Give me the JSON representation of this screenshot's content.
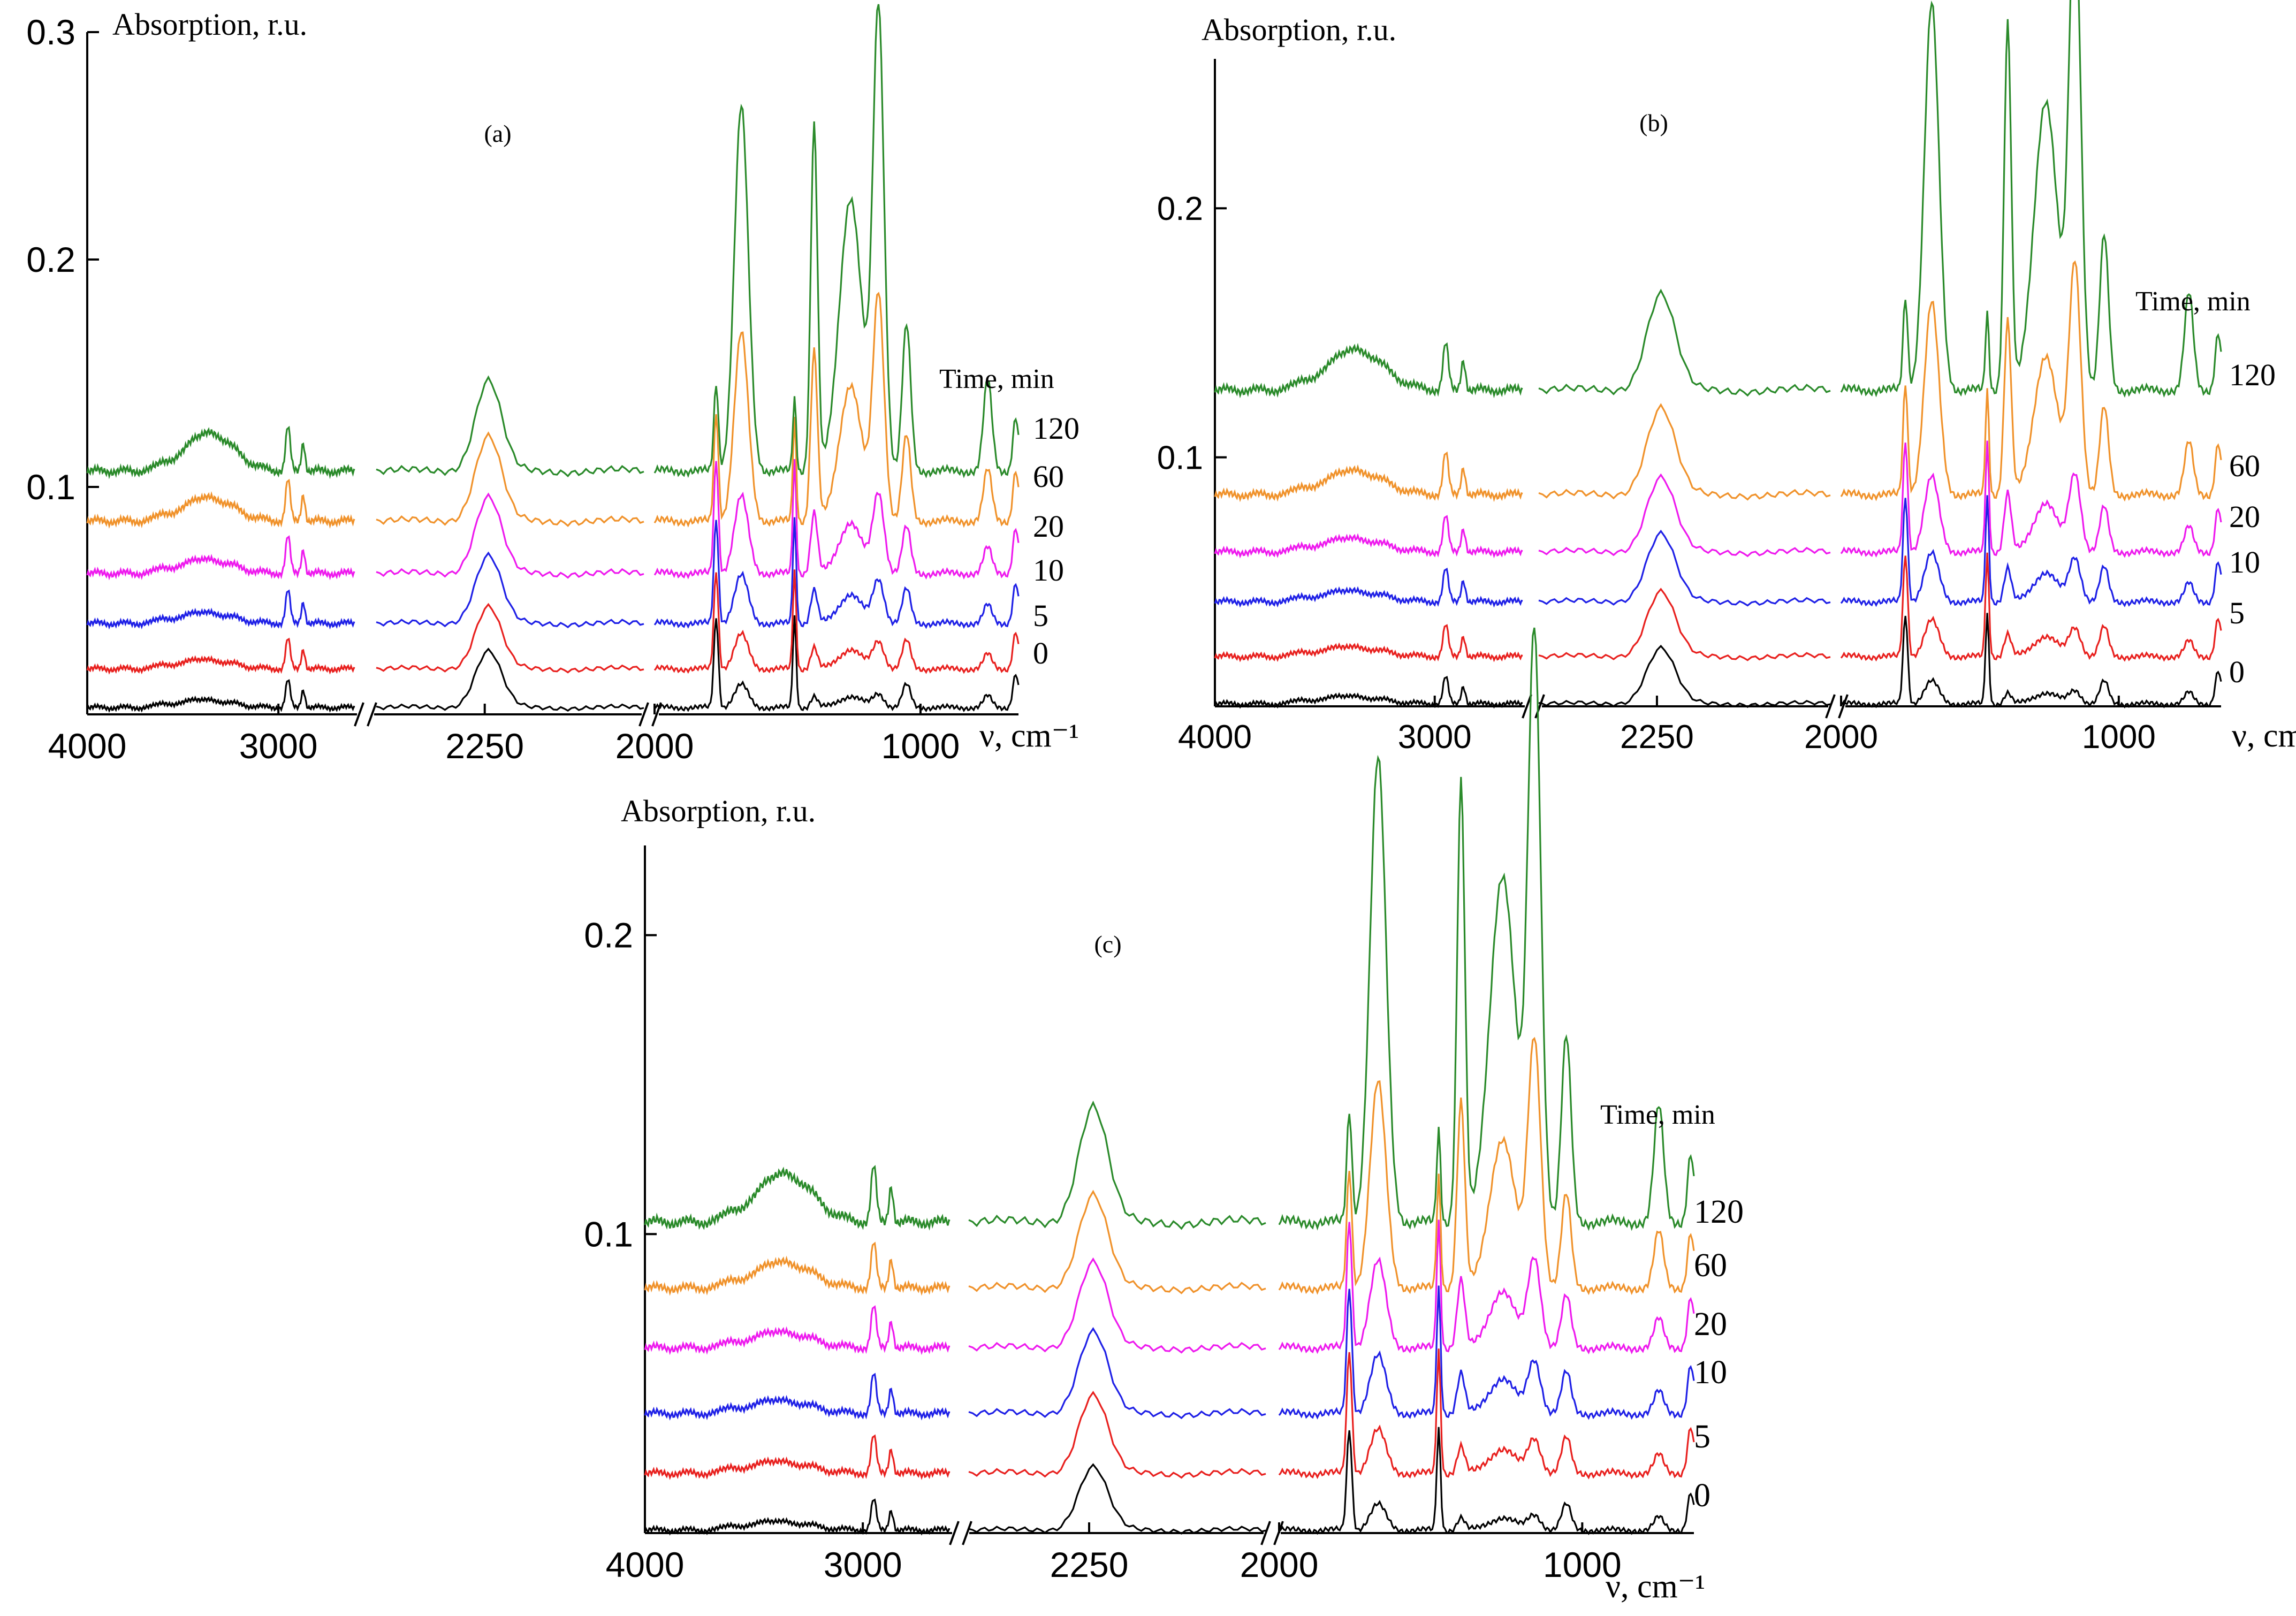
{
  "colors": {
    "0": "#000000",
    "5": "#e8201e",
    "10": "#1f20e6",
    "20": "#ee1aee",
    "60": "#f0922b",
    "120": "#2a8a2a"
  },
  "chart_data": [
    {
      "type": "line",
      "label": "(a)",
      "ylabel": "Absorption, r.u.",
      "xlabel": "ν, cm⁻¹",
      "legend_title": "Time, min",
      "ylim": [
        0,
        0.3
      ],
      "y_ticks": [
        "0.1",
        "0.2",
        "0.3"
      ],
      "y_tick_values": [
        0.1,
        0.2,
        0.3
      ],
      "x_segments": [
        [
          4000,
          2600
        ],
        [
          2400,
          2030
        ],
        [
          1950,
          650
        ]
      ],
      "x_ticks": [
        "4000",
        "3000",
        "2250",
        "2000",
        "1000"
      ],
      "x_tick_values": [
        4000,
        3000,
        2250,
        2000,
        1000
      ],
      "series": [
        {
          "name": "0",
          "offset": 0.003,
          "scale": 1.0
        },
        {
          "name": "5",
          "offset": 0.02,
          "scale": 1.1
        },
        {
          "name": "10",
          "offset": 0.04,
          "scale": 1.2
        },
        {
          "name": "20",
          "offset": 0.062,
          "scale": 1.35
        },
        {
          "name": "60",
          "offset": 0.085,
          "scale": 1.5
        },
        {
          "name": "120",
          "offset": 0.107,
          "scale": 1.6
        }
      ]
    },
    {
      "type": "line",
      "label": "(b)",
      "ylabel": "Absorption, r.u.",
      "xlabel": "ν, cm⁻¹",
      "legend_title": "Time, min",
      "ylim": [
        0,
        0.26
      ],
      "y_ticks": [
        "0.1",
        "0.2"
      ],
      "y_tick_values": [
        0.1,
        0.2
      ],
      "x_segments": [
        [
          4000,
          2600
        ],
        [
          2400,
          2030
        ],
        [
          1950,
          650
        ]
      ],
      "x_ticks": [
        "4000",
        "3000",
        "2250",
        "2000",
        "1000"
      ],
      "x_tick_values": [
        4000,
        3000,
        2250,
        2000,
        1000
      ],
      "series": [
        {
          "name": "0",
          "offset": 0.001,
          "scale": 0.9
        },
        {
          "name": "5",
          "offset": 0.02,
          "scale": 1.05
        },
        {
          "name": "10",
          "offset": 0.042,
          "scale": 1.1
        },
        {
          "name": "20",
          "offset": 0.062,
          "scale": 1.2
        },
        {
          "name": "60",
          "offset": 0.085,
          "scale": 1.4
        },
        {
          "name": "120",
          "offset": 0.127,
          "scale": 1.55
        }
      ]
    },
    {
      "type": "line",
      "label": "(c)",
      "ylabel": "Absorption, r.u.",
      "xlabel": "ν, cm⁻¹",
      "legend_title": "Time, min",
      "ylim": [
        0,
        0.23
      ],
      "y_ticks": [
        "0.1",
        "0.2"
      ],
      "y_tick_values": [
        0.1,
        0.2
      ],
      "x_segments": [
        [
          4000,
          2600
        ],
        [
          2400,
          2030
        ],
        [
          1950,
          650
        ]
      ],
      "x_ticks": [
        "4000",
        "3000",
        "2250",
        "2000",
        "1000"
      ],
      "x_tick_values": [
        4000,
        3000,
        2250,
        2000,
        1000
      ],
      "series": [
        {
          "name": "0",
          "offset": 0.001,
          "scale": 0.85
        },
        {
          "name": "5",
          "offset": 0.02,
          "scale": 1.05
        },
        {
          "name": "10",
          "offset": 0.04,
          "scale": 1.1
        },
        {
          "name": "20",
          "offset": 0.062,
          "scale": 1.15
        },
        {
          "name": "60",
          "offset": 0.082,
          "scale": 1.25
        },
        {
          "name": "120",
          "offset": 0.104,
          "scale": 1.55
        }
      ]
    }
  ]
}
